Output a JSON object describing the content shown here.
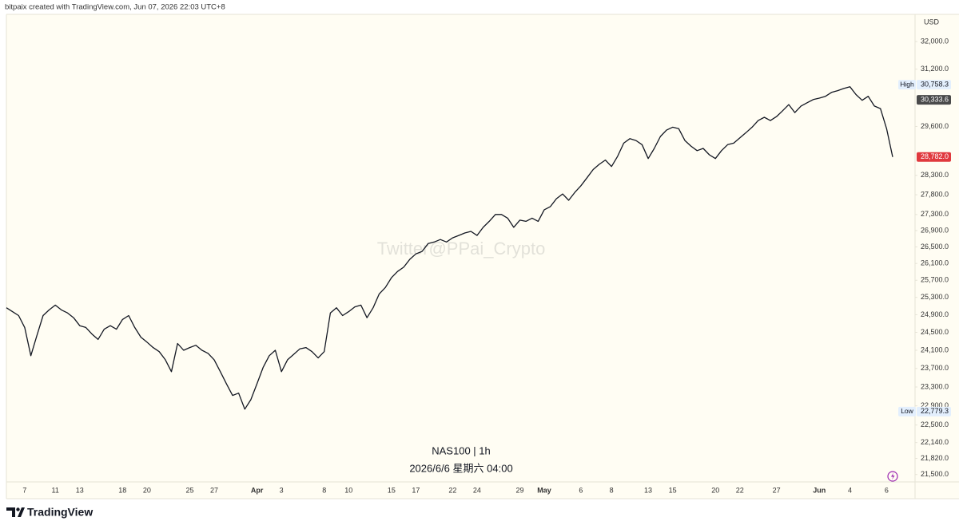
{
  "header": "bitpaix created with TradingView.com, Jun 07, 2026 22:03 UTC+8",
  "footer_logo": "TradingView",
  "chart_data": {
    "type": "line",
    "currency": "USD",
    "watermark": "Twitter@PPai_Crypto",
    "subtitle": "2026/6/6 星期六 04:00",
    "log_scale": true,
    "grid": false,
    "background": "#fffdf3",
    "ylim": [
      21370,
      32810
    ],
    "yticks": [
      {
        "value": 32000,
        "label": "32,000.0"
      },
      {
        "value": 31200,
        "label": "31,200.0"
      },
      {
        "value": 29600,
        "label": "29,600.0"
      },
      {
        "value": 28300,
        "label": "28,300.0"
      },
      {
        "value": 27800,
        "label": "27,800.0"
      },
      {
        "value": 27300,
        "label": "27,300.0"
      },
      {
        "value": 26900,
        "label": "26,900.0"
      },
      {
        "value": 26500,
        "label": "26,500.0"
      },
      {
        "value": 26100,
        "label": "26,100.0"
      },
      {
        "value": 25700,
        "label": "25,700.0"
      },
      {
        "value": 25300,
        "label": "25,300.0"
      },
      {
        "value": 24900,
        "label": "24,900.0"
      },
      {
        "value": 24500,
        "label": "24,500.0"
      },
      {
        "value": 24100,
        "label": "24,100.0"
      },
      {
        "value": 23700,
        "label": "23,700.0"
      },
      {
        "value": 23300,
        "label": "23,300.0"
      },
      {
        "value": 22900,
        "label": "22,900.0"
      },
      {
        "value": 22500,
        "label": "22,500.0"
      },
      {
        "value": 22140,
        "label": "22,140.0"
      },
      {
        "value": 21820,
        "label": "21,820.0"
      },
      {
        "value": 21500,
        "label": "21,500.0"
      }
    ],
    "markers": [
      {
        "label": "High",
        "value": 30758.3,
        "value_label": "30,758.3",
        "color": "#e3effd",
        "text_color": "#131722"
      },
      {
        "value": 30333.6,
        "value_label": "30,333.6",
        "color": "#4a4a4a",
        "text_color": "#ffffff"
      },
      {
        "value": 28782.0,
        "value_label": "28,782.0",
        "color": "#e0393e",
        "text_color": "#ffffff"
      },
      {
        "label": "Low",
        "value": 22779.3,
        "value_label": "22,779.3",
        "color": "#e3effd",
        "text_color": "#131722"
      }
    ],
    "categories": [
      null,
      null,
      null,
      "7",
      null,
      null,
      null,
      null,
      "11",
      null,
      null,
      null,
      "13",
      null,
      null,
      null,
      null,
      null,
      null,
      "18",
      null,
      null,
      null,
      "20",
      null,
      null,
      null,
      null,
      null,
      null,
      "25",
      null,
      null,
      null,
      "27",
      null,
      null,
      null,
      null,
      null,
      null,
      "Apr",
      null,
      null,
      null,
      "3",
      null,
      null,
      null,
      null,
      null,
      null,
      "8",
      null,
      null,
      null,
      "10",
      null,
      null,
      null,
      null,
      null,
      null,
      "15",
      null,
      null,
      null,
      "17",
      null,
      null,
      null,
      null,
      null,
      "22",
      null,
      null,
      null,
      "24",
      null,
      null,
      null,
      null,
      null,
      null,
      "29",
      null,
      null,
      null,
      "May",
      null,
      null,
      null,
      null,
      null,
      "6",
      null,
      null,
      null,
      null,
      "8",
      null,
      null,
      null,
      null,
      null,
      "13",
      null,
      null,
      null,
      "15",
      null,
      null,
      null,
      null,
      null,
      null,
      "20",
      null,
      null,
      null,
      "22",
      null,
      null,
      null,
      null,
      null,
      "27",
      null,
      null,
      null,
      null,
      null,
      null,
      "Jun",
      null,
      null,
      null,
      null,
      "4",
      null,
      null,
      null,
      null,
      null,
      "6",
      null
    ],
    "series": [
      {
        "name": "NAS100 | 1h",
        "color": "#131722",
        "values": [
          25060,
          24970,
          24880,
          24610,
          23980,
          24430,
          24880,
          25010,
          25120,
          25010,
          24940,
          24830,
          24650,
          24610,
          24460,
          24340,
          24570,
          24650,
          24570,
          24790,
          24880,
          24610,
          24390,
          24280,
          24160,
          24070,
          23890,
          23630,
          24250,
          24100,
          24160,
          24210,
          24100,
          24030,
          23890,
          23630,
          23370,
          23120,
          23170,
          22830,
          23030,
          23370,
          23720,
          23980,
          24100,
          23630,
          23890,
          24010,
          24130,
          24160,
          24070,
          23930,
          24070,
          24940,
          25060,
          24880,
          24970,
          25080,
          25120,
          24830,
          25060,
          25380,
          25530,
          25760,
          25910,
          26010,
          26200,
          26330,
          26390,
          26580,
          26620,
          26680,
          26620,
          26720,
          26780,
          26840,
          26880,
          26780,
          26980,
          27130,
          27300,
          27300,
          27210,
          26980,
          27160,
          27130,
          27210,
          27130,
          27420,
          27500,
          27700,
          27820,
          27660,
          27860,
          28030,
          28240,
          28450,
          28590,
          28700,
          28530,
          28800,
          29150,
          29270,
          29220,
          29110,
          28740,
          29010,
          29330,
          29500,
          29580,
          29540,
          29220,
          29070,
          28950,
          29010,
          28840,
          28740,
          28950,
          29110,
          29150,
          29290,
          29430,
          29580,
          29760,
          29850,
          29760,
          29870,
          30030,
          30200,
          29980,
          30160,
          30250,
          30340,
          30380,
          30430,
          30540,
          30590,
          30650,
          30700,
          30480,
          30320,
          30430,
          30160,
          30090,
          29540,
          28782
        ]
      }
    ]
  }
}
